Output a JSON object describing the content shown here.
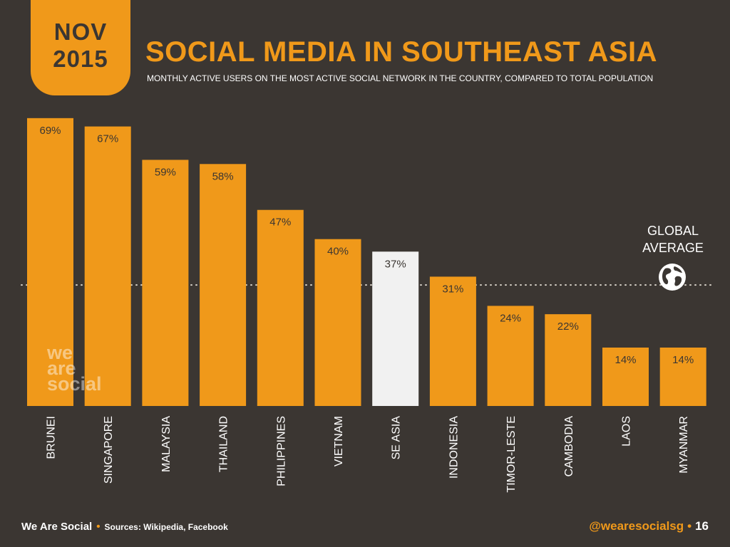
{
  "header": {
    "month": "NOV",
    "year": "2015",
    "title": "SOCIAL MEDIA IN SOUTHEAST ASIA",
    "subtitle": "MONTHLY ACTIVE USERS ON THE MOST ACTIVE SOCIAL NETWORK IN THE COUNTRY, COMPARED TO TOTAL POPULATION"
  },
  "watermark": {
    "line1": "we",
    "line2": "are",
    "line3": "social"
  },
  "global_average": {
    "line1": "GLOBAL",
    "line2": "AVERAGE",
    "icon": "globe-icon"
  },
  "footer": {
    "brand": "We Are Social",
    "separator": "•",
    "sources": "Sources: Wikipedia, Facebook",
    "handle": "@wearesocialsg",
    "page": "16"
  },
  "colors": {
    "background": "#3b3632",
    "accent": "#f0991a",
    "highlight_bar": "#f1f1f1",
    "text": "#ffffff"
  },
  "chart_data": {
    "type": "bar",
    "title": "SOCIAL MEDIA IN SOUTHEAST ASIA",
    "categories": [
      "BRUNEI",
      "SINGAPORE",
      "MALAYSIA",
      "THAILAND",
      "PHILIPPINES",
      "VIETNAM",
      "SE ASIA",
      "INDONESIA",
      "TIMOR-LESTE",
      "CAMBODIA",
      "LAOS",
      "MYANMAR"
    ],
    "values": [
      69,
      67,
      59,
      58,
      47,
      40,
      37,
      31,
      24,
      22,
      14,
      14
    ],
    "labels": [
      "69%",
      "67%",
      "59%",
      "58%",
      "47%",
      "40%",
      "37%",
      "31%",
      "24%",
      "22%",
      "14%",
      "14%"
    ],
    "highlight": "SE ASIA",
    "reference_line": {
      "label": "GLOBAL AVERAGE",
      "value": 29
    },
    "ylim": [
      0,
      70
    ],
    "xlabel": "",
    "ylabel": ""
  }
}
